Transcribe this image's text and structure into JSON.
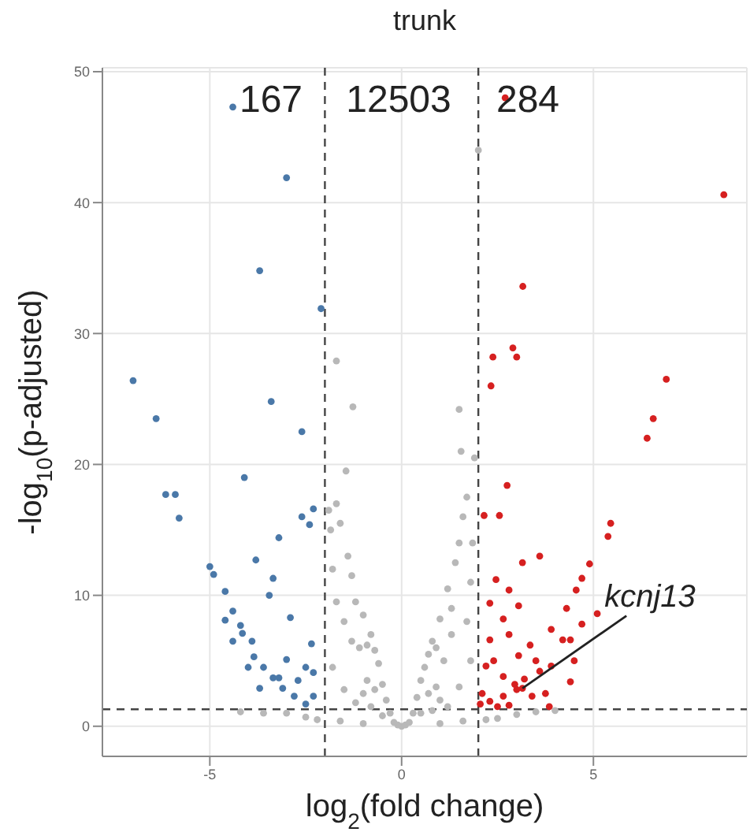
{
  "chart_data": {
    "type": "scatter",
    "title": "trunk",
    "xlabel": "log$_{2}$(fold change)",
    "ylabel": "-log$_{10}$(p-adjusted)",
    "xlim": [
      -7.8,
      9.0
    ],
    "ylim": [
      -2.3,
      50.3
    ],
    "xticks": [
      -5,
      0,
      5
    ],
    "yticks": [
      0,
      10,
      20,
      30,
      40,
      50
    ],
    "grid": true,
    "marker": "circle",
    "ref_lines": [
      {
        "axis": "x",
        "value": -2,
        "line_style": "dashed",
        "color": "#444444"
      },
      {
        "axis": "x",
        "value": 2,
        "line_style": "dashed",
        "color": "#444444"
      },
      {
        "axis": "y",
        "value": 1.3,
        "line_style": "dashed",
        "color": "#444444"
      }
    ],
    "annotations": [
      "167",
      "12503",
      "284",
      {
        "text": "kcnj13",
        "x": 3.15,
        "y": 2.9
      }
    ],
    "series": [
      {
        "color": "#4a78a8",
        "x": [
          -4.4,
          -3.0,
          -3.7,
          -7.0,
          -6.4,
          -3.4,
          -2.6,
          -2.1,
          -6.15,
          -5.9,
          -5.8,
          -4.1,
          -5.0,
          -4.9,
          -4.6,
          -4.4,
          -4.2,
          -4.15,
          -3.9,
          -3.85,
          -3.6,
          -3.35,
          -3.1,
          -2.8,
          -2.5,
          -2.4,
          -2.6,
          -2.3,
          -3.2,
          -3.8,
          -3.35,
          -2.9,
          -2.35,
          -3.45,
          -4.0,
          -3.7,
          -3.0,
          -2.3,
          -3.2,
          -4.4,
          -4.6,
          -2.7,
          -2.3,
          -2.5
        ],
        "values": [
          47.3,
          41.9,
          34.8,
          26.4,
          23.5,
          24.8,
          22.5,
          31.9,
          17.7,
          17.7,
          15.9,
          19.0,
          12.2,
          11.6,
          10.3,
          8.8,
          7.7,
          7.1,
          6.5,
          5.3,
          4.5,
          3.7,
          2.9,
          2.3,
          1.7,
          15.4,
          16.0,
          16.6,
          14.4,
          12.7,
          11.3,
          8.3,
          6.3,
          10.0,
          4.5,
          2.9,
          5.1,
          4.1,
          3.7,
          6.5,
          8.1,
          3.5,
          2.3,
          4.5
        ]
      },
      {
        "color": "#b8b8b8",
        "x": [
          0,
          0.1,
          -0.1,
          0.2,
          -0.2,
          0.3,
          -0.3,
          0.4,
          -0.4,
          0.5,
          -0.5,
          0.6,
          -0.6,
          0.7,
          -0.7,
          0.8,
          -0.8,
          0.9,
          -0.9,
          1.0,
          -1.0,
          1.1,
          -1.1,
          1.2,
          -1.2,
          1.3,
          -1.3,
          1.4,
          -1.4,
          1.5,
          -1.5,
          1.6,
          -1.6,
          1.7,
          -1.7,
          1.8,
          -1.8,
          1.9,
          -1.9,
          1.55,
          -1.45,
          1.5,
          -1.27,
          -1.7,
          2.0,
          0.5,
          -0.5,
          1.0,
          -1.0,
          1.5,
          -1.5,
          1.8,
          -1.8,
          1.2,
          -1.2,
          0.8,
          -0.8,
          2.5,
          -2.5,
          3.0,
          -3.0,
          3.5,
          -3.6,
          4.0,
          -4.2,
          2.2,
          -2.2,
          1.6,
          -1.6,
          1.0,
          -1.0,
          1.3,
          -1.3,
          0.9,
          -0.9,
          1.7,
          -1.7,
          1.85,
          -1.85,
          0.7,
          -0.7
        ],
        "values": [
          0,
          0.1,
          0.1,
          0.3,
          0.3,
          1.0,
          1.0,
          2.2,
          2.0,
          3.5,
          3.2,
          4.5,
          4.8,
          5.5,
          5.8,
          6.5,
          7.0,
          3.0,
          3.5,
          8.2,
          8.5,
          5.0,
          6.0,
          10.5,
          9.5,
          7.0,
          11.5,
          12.5,
          13.0,
          14.0,
          8.0,
          16.0,
          15.5,
          17.5,
          17.0,
          11.0,
          12.0,
          20.5,
          16.5,
          21.0,
          19.5,
          24.2,
          24.4,
          27.9,
          44.0,
          1.0,
          0.8,
          2.0,
          2.5,
          3.0,
          2.8,
          5.0,
          4.5,
          1.5,
          1.8,
          1.2,
          1.5,
          0.6,
          0.7,
          0.9,
          1.0,
          1.1,
          1.0,
          1.2,
          1.1,
          0.5,
          0.5,
          0.4,
          0.4,
          0.2,
          0.2,
          9.0,
          6.5,
          6.0,
          6.2,
          8.0,
          9.5,
          14.0,
          15.0,
          2.5,
          2.8
        ]
      },
      {
        "color": "#d62020",
        "x": [
          8.4,
          3.16,
          2.38,
          2.9,
          3.0,
          2.33,
          6.9,
          6.56,
          6.4,
          2.7,
          2.75,
          2.55,
          2.15,
          5.45,
          5.38,
          3.15,
          3.6,
          4.9,
          4.7,
          2.46,
          2.8,
          2.3,
          3.05,
          4.55,
          4.3,
          5.1,
          3.9,
          4.2,
          2.65,
          2.8,
          3.05,
          3.5,
          3.9,
          4.5,
          2.3,
          2.4,
          2.65,
          2.95,
          3.2,
          3.6,
          3.75,
          2.1,
          2.3,
          2.65,
          3.4,
          3.85,
          2.05,
          4.4,
          4.7,
          2.2,
          3.35,
          2.5,
          2.8,
          3.0,
          4.4,
          3.15
        ],
        "values": [
          40.6,
          33.6,
          28.2,
          28.9,
          28.2,
          26.0,
          26.5,
          23.5,
          22.0,
          48,
          18.4,
          16.1,
          16.1,
          15.5,
          14.5,
          12.5,
          13.0,
          12.4,
          11.3,
          11.2,
          10.4,
          9.4,
          9.2,
          10.4,
          9.0,
          8.6,
          7.4,
          6.6,
          8.2,
          7.0,
          5.4,
          5.0,
          4.6,
          5.0,
          6.6,
          5.0,
          3.8,
          3.2,
          3.6,
          4.2,
          2.5,
          2.5,
          1.9,
          2.3,
          2.3,
          1.5,
          1.7,
          6.6,
          7.8,
          4.6,
          6.2,
          1.5,
          1.6,
          2.8,
          3.4,
          2.9
        ]
      }
    ]
  }
}
